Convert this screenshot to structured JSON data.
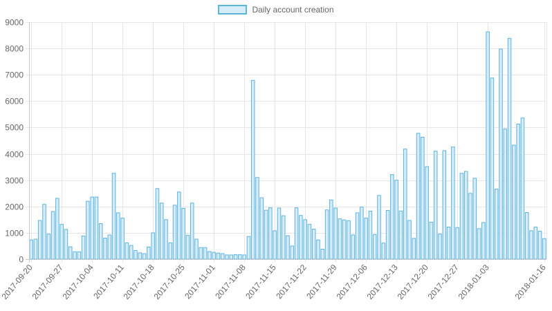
{
  "chart_data": {
    "type": "bar",
    "title": "",
    "xlabel": "",
    "ylabel": "",
    "ylim": [
      0,
      9000
    ],
    "y_ticks": [
      0,
      1000,
      2000,
      3000,
      4000,
      5000,
      6000,
      7000,
      8000,
      9000
    ],
    "grid": true,
    "legend": {
      "position": "top-center",
      "entries": [
        "Daily account creation"
      ]
    },
    "x_tick_labels": [
      "2017-09-20",
      "2017-09-27",
      "2017-10-04",
      "2017-10-11",
      "2017-10-18",
      "2017-10-25",
      "2017-11-01",
      "2017-11-08",
      "2017-11-15",
      "2017-11-22",
      "2017-11-29",
      "2017-12-06",
      "2017-12-13",
      "2017-12-20",
      "2017-12-27",
      "2018-01-03",
      "2018-01-16"
    ],
    "colors": {
      "bar_fill": "#d6ecf8",
      "bar_border": "#5bb3de",
      "grid": "#e6e6e6",
      "text": "#666666"
    },
    "start_date": "2017-09-20",
    "series": [
      {
        "name": "Daily account creation",
        "values": [
          730,
          760,
          1470,
          2080,
          950,
          1810,
          2310,
          1320,
          1130,
          470,
          280,
          280,
          880,
          2200,
          2360,
          2360,
          1350,
          800,
          920,
          3260,
          1760,
          1560,
          620,
          520,
          330,
          240,
          210,
          460,
          1000,
          2680,
          2130,
          1500,
          620,
          2050,
          2550,
          1930,
          910,
          2130,
          760,
          440,
          440,
          290,
          260,
          230,
          210,
          160,
          160,
          170,
          170,
          160,
          860,
          6790,
          3100,
          2330,
          1860,
          1950,
          1080,
          1940,
          1650,
          890,
          500,
          1950,
          1660,
          1500,
          1320,
          1140,
          730,
          380,
          1870,
          2250,
          1940,
          1530,
          1490,
          1460,
          920,
          1760,
          1980,
          1560,
          1820,
          930,
          2420,
          610,
          1850,
          3210,
          3000,
          1830,
          4180,
          1470,
          790,
          4780,
          4630,
          3510,
          1400,
          4100,
          950,
          4120,
          1220,
          4260,
          1200,
          3260,
          3330,
          2500,
          3070,
          1160,
          1390,
          8630,
          6880,
          2660,
          7980,
          4940,
          8380,
          4330,
          5130,
          5360,
          1770,
          1080,
          1220,
          1060,
          780
        ]
      }
    ]
  }
}
